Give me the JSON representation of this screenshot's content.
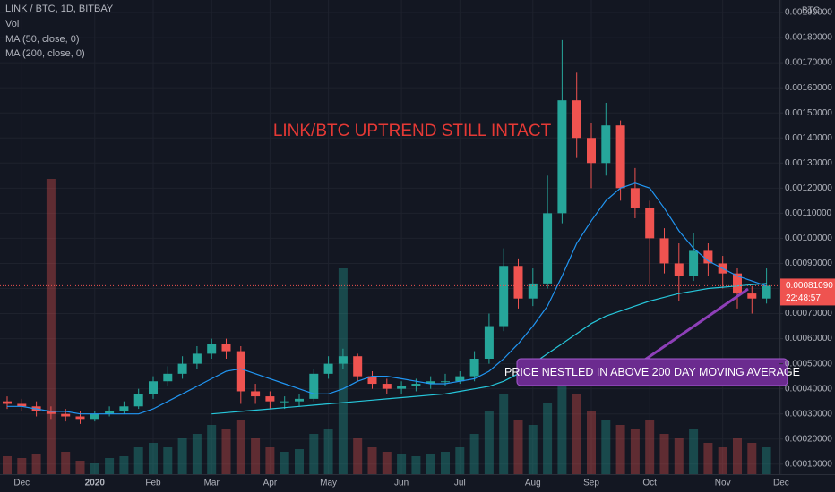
{
  "chart_data": {
    "type": "candlestick",
    "title": "LINK / BTC, 1D, BITBAY",
    "volume_name": "Vol",
    "axis_unit": "BTC",
    "annotation": "LINK/BTC UPTREND STILL INTACT",
    "callout": "PRICE NESTLED IN ABOVE 200 DAY MOVING AVERAGE",
    "price_label": "0.00081090",
    "countdown": "22:48:57",
    "up_color": "#26a69a",
    "down_color": "#ef5350",
    "grid": true,
    "categories": [
      null,
      "Dec",
      null,
      null,
      null,
      null,
      "2020",
      null,
      null,
      null,
      "Feb",
      null,
      null,
      null,
      "Mar",
      null,
      null,
      null,
      "Apr",
      null,
      null,
      null,
      "May",
      null,
      null,
      null,
      null,
      "Jun",
      null,
      null,
      null,
      "Jul",
      null,
      null,
      null,
      null,
      "Aug",
      null,
      null,
      null,
      "Sep",
      null,
      null,
      null,
      "Oct",
      null,
      null,
      null,
      null,
      "Nov",
      null,
      null,
      null,
      "Dec"
    ],
    "open": [
      0.00035,
      0.00034,
      0.00033,
      0.00031,
      0.0003,
      0.00029,
      0.00028,
      0.0003,
      0.00031,
      0.00033,
      0.00038,
      0.00043,
      0.00046,
      0.0005,
      0.00054,
      0.00058,
      0.00055,
      0.00039,
      0.00037,
      0.00035,
      0.00035,
      0.00036,
      0.00046,
      0.0005,
      0.00053,
      0.00045,
      0.00042,
      0.0004,
      0.00041,
      0.00042,
      0.00043,
      0.00043,
      0.00045,
      0.00052,
      0.00065,
      0.00089,
      0.00076,
      0.00082,
      0.0011,
      0.00155,
      0.0014,
      0.0013,
      0.00145,
      0.0012,
      0.00112,
      0.001,
      0.0009,
      0.00085,
      0.00095,
      0.0009,
      0.00086,
      0.00078,
      0.00076,
      null
    ],
    "high": [
      0.00037,
      0.00036,
      0.00035,
      0.00033,
      0.00032,
      0.00031,
      0.00031,
      0.00033,
      0.00035,
      0.0004,
      0.00045,
      0.00049,
      0.00053,
      0.00057,
      0.0006,
      0.0006,
      0.00057,
      0.00042,
      0.00039,
      0.00037,
      0.00038,
      0.00048,
      0.00053,
      0.00056,
      0.00054,
      0.00047,
      0.00044,
      0.00043,
      0.00044,
      0.00045,
      0.00046,
      0.00047,
      0.00055,
      0.0007,
      0.00096,
      0.00092,
      0.00088,
      0.00125,
      0.00179,
      0.00166,
      0.00146,
      0.00154,
      0.00147,
      0.00128,
      0.00115,
      0.00104,
      0.00098,
      0.00102,
      0.00098,
      0.00093,
      0.00088,
      0.00081,
      0.00088,
      null
    ],
    "low": [
      0.00032,
      0.00031,
      0.00029,
      0.00028,
      0.00027,
      0.00026,
      0.00027,
      0.00029,
      0.0003,
      0.00032,
      0.00036,
      0.00041,
      0.00044,
      0.00048,
      0.00052,
      0.00052,
      0.00034,
      0.00034,
      0.00032,
      0.00032,
      0.00033,
      0.00035,
      0.00044,
      0.00048,
      0.00043,
      0.0004,
      0.00038,
      0.00038,
      0.00039,
      0.0004,
      0.00041,
      0.00042,
      0.00043,
      0.0005,
      0.00063,
      0.00072,
      0.00073,
      0.0008,
      0.00106,
      0.00132,
      0.0012,
      0.00125,
      0.00115,
      0.00108,
      0.00082,
      0.00086,
      0.00075,
      0.00083,
      0.00085,
      0.0008,
      0.00072,
      0.0007,
      0.00074,
      null
    ],
    "close": [
      0.00034,
      0.00033,
      0.00031,
      0.0003,
      0.00029,
      0.00028,
      0.0003,
      0.00031,
      0.00033,
      0.00038,
      0.00043,
      0.00046,
      0.0005,
      0.00054,
      0.00058,
      0.00055,
      0.00039,
      0.00037,
      0.00035,
      0.00035,
      0.00036,
      0.00046,
      0.0005,
      0.00053,
      0.00045,
      0.00042,
      0.0004,
      0.00041,
      0.00042,
      0.00043,
      0.00043,
      0.00045,
      0.00052,
      0.00065,
      0.00089,
      0.00076,
      0.00082,
      0.0011,
      0.00155,
      0.0014,
      0.0013,
      0.00145,
      0.0012,
      0.00112,
      0.001,
      0.0009,
      0.00085,
      0.00095,
      0.0009,
      0.00086,
      0.00078,
      0.00076,
      0.0008109,
      null
    ],
    "volume": [
      20,
      18,
      22,
      330,
      25,
      15,
      12,
      18,
      20,
      30,
      35,
      30,
      40,
      45,
      55,
      50,
      60,
      40,
      30,
      25,
      28,
      45,
      50,
      230,
      40,
      30,
      25,
      22,
      20,
      22,
      25,
      30,
      45,
      70,
      90,
      60,
      55,
      80,
      110,
      90,
      70,
      60,
      55,
      50,
      60,
      45,
      40,
      50,
      35,
      30,
      40,
      35,
      30,
      null
    ],
    "series": [
      {
        "name": "MA (50, close, 0)",
        "color": "#2196f3",
        "values": [
          0.00033,
          0.00033,
          0.00032,
          0.00031,
          0.00031,
          0.0003,
          0.0003,
          0.0003,
          0.0003,
          0.0003,
          0.00032,
          0.00035,
          0.00038,
          0.00041,
          0.00044,
          0.00047,
          0.00048,
          0.00046,
          0.00044,
          0.00042,
          0.0004,
          0.00038,
          0.00038,
          0.0004,
          0.00043,
          0.00045,
          0.00045,
          0.00044,
          0.00043,
          0.00042,
          0.00042,
          0.00043,
          0.00044,
          0.00047,
          0.00052,
          0.00058,
          0.00065,
          0.00073,
          0.00085,
          0.00098,
          0.00107,
          0.00115,
          0.0012,
          0.00122,
          0.0012,
          0.00112,
          0.00103,
          0.00096,
          0.00091,
          0.00088,
          0.00085,
          0.00083,
          0.00081,
          null
        ]
      },
      {
        "name": "MA (200, close, 0)",
        "color": "#26c6da",
        "values": [
          null,
          null,
          null,
          null,
          null,
          null,
          null,
          null,
          null,
          null,
          null,
          null,
          null,
          null,
          0.0003,
          0.000305,
          0.00031,
          0.000315,
          0.00032,
          0.000325,
          0.00033,
          0.000335,
          0.00034,
          0.000345,
          0.00035,
          0.000355,
          0.00036,
          0.000365,
          0.00037,
          0.000375,
          0.00038,
          0.00039,
          0.0004,
          0.00041,
          0.00043,
          0.00046,
          0.0005,
          0.00054,
          0.00058,
          0.00062,
          0.00066,
          0.00069,
          0.00071,
          0.00073,
          0.00075,
          0.000765,
          0.00078,
          0.00079,
          0.0008,
          0.000805,
          0.00081,
          0.000815,
          0.00082,
          null
        ]
      }
    ],
    "ylim": [
      6e-05,
      0.00195
    ],
    "yticks": [
      {
        "value": 0.0001,
        "label": "0.00010000"
      },
      {
        "value": 0.0002,
        "label": "0.00020000"
      },
      {
        "value": 0.0003,
        "label": "0.00030000"
      },
      {
        "value": 0.0004,
        "label": "0.00040000"
      },
      {
        "value": 0.0005,
        "label": "0.00050000"
      },
      {
        "value": 0.0006,
        "label": "0.00060000"
      },
      {
        "value": 0.0007,
        "label": "0.00070000"
      },
      {
        "value": 0.0008,
        "label": "0.00080000"
      },
      {
        "value": 0.0009,
        "label": "0.00090000"
      },
      {
        "value": 0.001,
        "label": "0.00100000"
      },
      {
        "value": 0.0011,
        "label": "0.00110000"
      },
      {
        "value": 0.0012,
        "label": "0.00120000"
      },
      {
        "value": 0.0013,
        "label": "0.00130000"
      },
      {
        "value": 0.0014,
        "label": "0.00140000"
      },
      {
        "value": 0.0015,
        "label": "0.00150000"
      },
      {
        "value": 0.0016,
        "label": "0.00160000"
      },
      {
        "value": 0.0017,
        "label": "0.00170000"
      },
      {
        "value": 0.0018,
        "label": "0.00180000"
      },
      {
        "value": 0.0019,
        "label": "0.00190000"
      }
    ]
  }
}
